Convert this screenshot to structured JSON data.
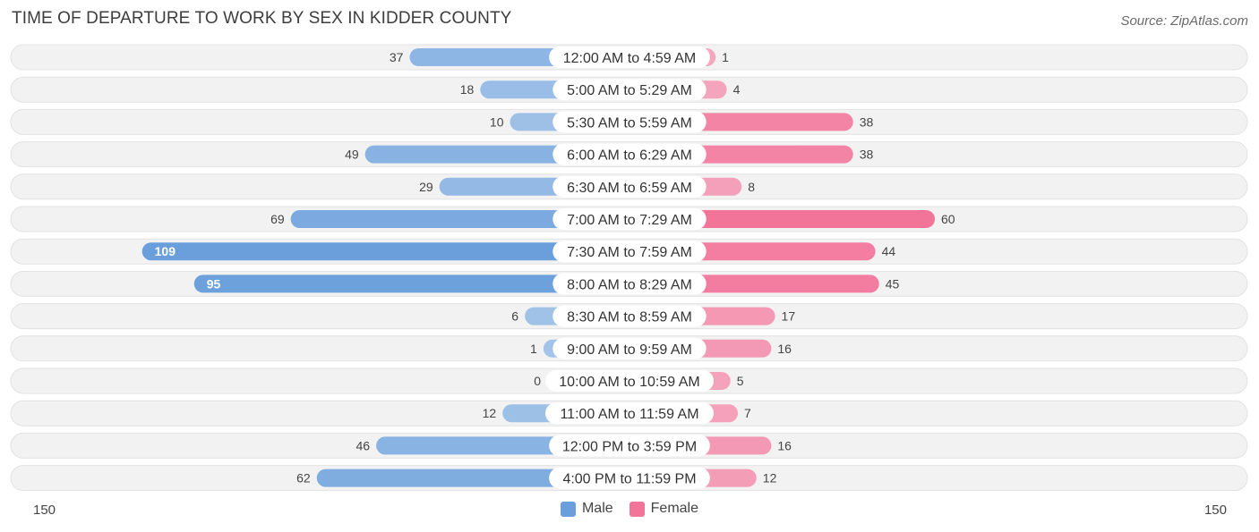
{
  "header": {
    "title": "TIME OF DEPARTURE TO WORK BY SEX IN KIDDER COUNTY",
    "source": "Source: ZipAtlas.com"
  },
  "colors": {
    "male": "#6a9fdc",
    "male_light": "#a4c4e8",
    "female": "#f27499",
    "female_light": "#f5a8c0",
    "row_bg": "#f2f2f2"
  },
  "axis": {
    "left_label": "150",
    "right_label": "150"
  },
  "legend": {
    "male": "Male",
    "female": "Female"
  },
  "chart_data": {
    "type": "bar",
    "orientation": "diverging-horizontal",
    "title": "TIME OF DEPARTURE TO WORK BY SEX IN KIDDER COUNTY",
    "xlim": [
      -150,
      150
    ],
    "categories": [
      "12:00 AM to 4:59 AM",
      "5:00 AM to 5:29 AM",
      "5:30 AM to 5:59 AM",
      "6:00 AM to 6:29 AM",
      "6:30 AM to 6:59 AM",
      "7:00 AM to 7:29 AM",
      "7:30 AM to 7:59 AM",
      "8:00 AM to 8:29 AM",
      "8:30 AM to 8:59 AM",
      "9:00 AM to 9:59 AM",
      "10:00 AM to 10:59 AM",
      "11:00 AM to 11:59 AM",
      "12:00 PM to 3:59 PM",
      "4:00 PM to 11:59 PM"
    ],
    "series": [
      {
        "name": "Male",
        "values": [
          37,
          18,
          10,
          49,
          29,
          69,
          109,
          95,
          6,
          1,
          0,
          12,
          46,
          62
        ]
      },
      {
        "name": "Female",
        "values": [
          1,
          4,
          38,
          38,
          8,
          60,
          44,
          45,
          17,
          16,
          5,
          7,
          16,
          12
        ]
      }
    ],
    "legend_position": "bottom-center"
  }
}
